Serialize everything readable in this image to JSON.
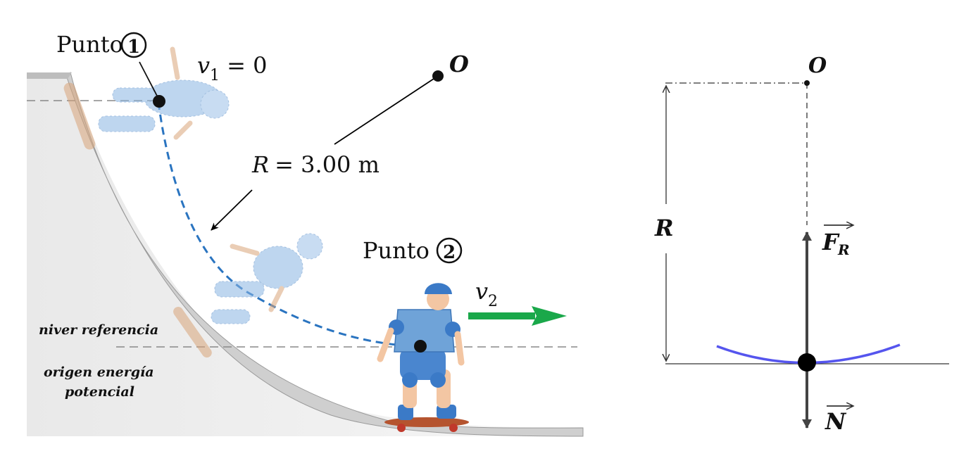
{
  "left_figure": {
    "point1_label": "Punto",
    "point1_number": "1",
    "point2_label": "Punto",
    "point2_number": "2",
    "v1_symbol": "v",
    "v1_subscript": "1",
    "v1_rest": " = 0",
    "center_label": "O",
    "radius_symbol": "R",
    "radius_rest": " = 3.00 m",
    "v2_symbol": "v",
    "v2_subscript": "2",
    "reference_level_label": "niver referencia",
    "origin_label_line1": "origen energía",
    "origin_label_line2": "potencial"
  },
  "right_figure": {
    "center_label": "O",
    "radius_label": "R",
    "force_fr_symbol": "F",
    "force_fr_subscript": "R",
    "force_n_symbol": "N"
  },
  "colors": {
    "skater_blue": "#6fa3d8",
    "path_blue": "#2a74c0",
    "arrow_green": "#1aa84a",
    "trajectory_purple": "#5555ee",
    "ramp_gray": "#d0d0d0"
  }
}
